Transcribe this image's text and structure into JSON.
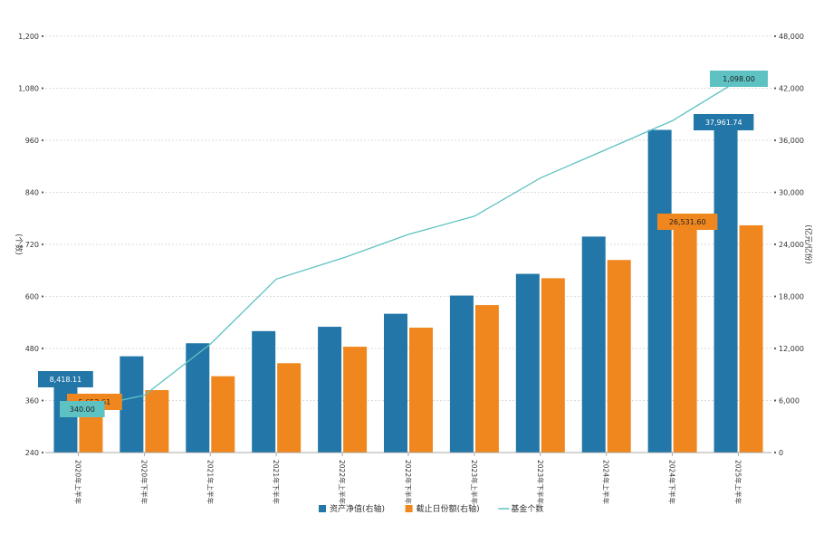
{
  "chart_data": {
    "type": "bar",
    "title": "",
    "categories": [
      "2020年上半年",
      "2020年下半年",
      "2021年上半年",
      "2021年下半年",
      "2022年上半年",
      "2022年下半年",
      "2023年上半年",
      "2023年下半年",
      "2024年上半年",
      "2024年下半年",
      "2025年上半年"
    ],
    "series": [
      {
        "name": "资产净值(右轴)",
        "axis": "right",
        "kind": "bar",
        "color": "#2277a8",
        "values": [
          8418.11,
          11100,
          12600,
          14000,
          14500,
          16000,
          18100,
          20600,
          24900,
          37200,
          37961.74
        ]
      },
      {
        "name": "截止日份额(右轴)",
        "axis": "right",
        "kind": "bar",
        "color": "#f0871e",
        "values": [
          5652.61,
          7200,
          8800,
          10300,
          12200,
          14400,
          17000,
          20100,
          22200,
          26531.6,
          26200
        ]
      },
      {
        "name": "基金个数",
        "axis": "left",
        "kind": "line",
        "color": "#5ec2c2",
        "values": [
          340.0,
          372,
          490,
          640,
          688,
          743,
          785,
          873,
          939,
          1005,
          1098.0
        ]
      }
    ],
    "left_axis": {
      "label": "(个数)",
      "min": 240,
      "max": 1200,
      "ticks": [
        "240",
        "360",
        "480",
        "600",
        "720",
        "840",
        "960",
        "1,080",
        "1,200"
      ]
    },
    "right_axis": {
      "label": "(亿元/亿份)",
      "min": 0,
      "max": 48000,
      "ticks": [
        "0",
        "6,000",
        "12,000",
        "18,000",
        "24,000",
        "30,000",
        "36,000",
        "42,000",
        "48,000"
      ]
    },
    "grid": true,
    "legend_position": "bottom",
    "annotations": [
      {
        "series": 0,
        "index": 0,
        "text": "8,418.11",
        "color": "#2277a8"
      },
      {
        "series": 1,
        "index": 0,
        "text": "5,652.61",
        "color": "#f0871e"
      },
      {
        "series": 2,
        "index": 0,
        "text": "340.00",
        "color": "#5ec2c2"
      },
      {
        "series": 0,
        "index": 10,
        "text": "37,961.74",
        "color": "#2277a8"
      },
      {
        "series": 1,
        "index": 9,
        "text": "26,531.60",
        "color": "#f0871e"
      },
      {
        "series": 2,
        "index": 10,
        "text": "1,098.00",
        "color": "#5ec2c2"
      }
    ]
  }
}
